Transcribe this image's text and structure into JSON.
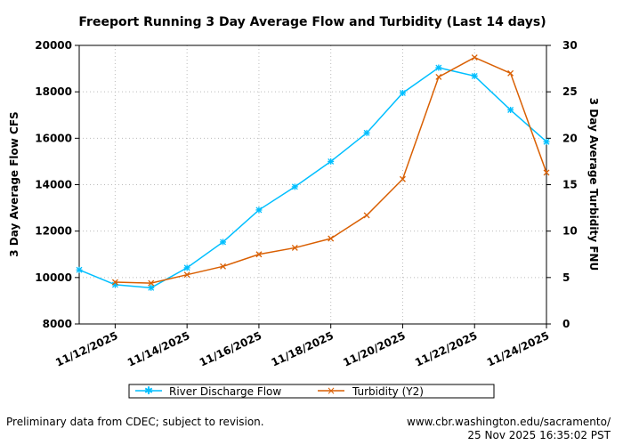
{
  "chart_data": {
    "type": "line",
    "title": "Freeport Running 3 Day Average Flow and Turbidity (Last 14 days)",
    "ylabel": "3 Day Average Flow CFS",
    "y2label": "3 Day Average Turbidity FNU",
    "xlabel": "",
    "x": [
      "11/11/2025",
      "11/12/2025",
      "11/13/2025",
      "11/14/2025",
      "11/15/2025",
      "11/16/2025",
      "11/17/2025",
      "11/18/2025",
      "11/19/2025",
      "11/20/2025",
      "11/21/2025",
      "11/22/2025",
      "11/23/2025",
      "11/24/2025"
    ],
    "xticks": [
      "11/12/2025",
      "11/14/2025",
      "11/16/2025",
      "11/18/2025",
      "11/20/2025",
      "11/22/2025",
      "11/24/2025"
    ],
    "ylim": [
      8000,
      20000
    ],
    "yticks": [
      "8000",
      "10000",
      "12000",
      "14000",
      "16000",
      "18000",
      "20000"
    ],
    "y2lim": [
      0,
      30
    ],
    "y2ticks": [
      "0",
      "5",
      "10",
      "15",
      "20",
      "25",
      "30"
    ],
    "grid": true,
    "legend_position": "bottom",
    "series": [
      {
        "name": "River Discharge Flow",
        "axis": "left",
        "color": "#00bfff",
        "marker": "asterisk",
        "values": [
          10330,
          9690,
          9560,
          10420,
          11530,
          12910,
          13910,
          15000,
          16230,
          17950,
          19040,
          18680,
          17220,
          15850
        ]
      },
      {
        "name": "Turbidity (Y2)",
        "axis": "right",
        "color": "#d95f02",
        "marker": "x",
        "values": [
          null,
          4.5,
          4.4,
          5.3,
          6.2,
          7.5,
          8.2,
          9.2,
          11.7,
          15.6,
          26.6,
          28.7,
          27.0,
          16.3
        ]
      }
    ]
  },
  "footer": {
    "left": "Preliminary data from CDEC; subject to revision.",
    "right_url": "www.cbr.washington.edu/sacramento/",
    "right_time": "25 Nov 2025 16:35:02 PST"
  }
}
